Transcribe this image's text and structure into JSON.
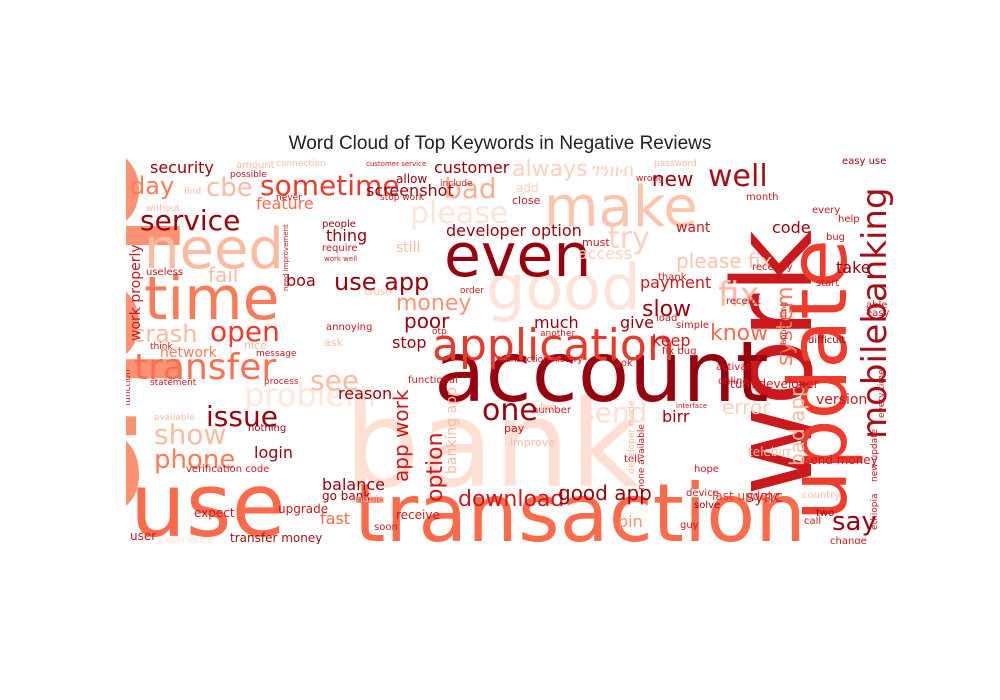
{
  "title": "Word Cloud of Top Keywords in Negative Reviews",
  "chart_data": {
    "type": "wordcloud",
    "title": "Word Cloud of Top Keywords in Negative Reviews",
    "colormap": "Reds",
    "background": "#ffffff",
    "words": [
      {
        "text": "app",
        "color": "#fc9272"
      },
      {
        "text": "bank",
        "color": "#fee0d2"
      },
      {
        "text": "work",
        "color": "#cb181d"
      },
      {
        "text": "update",
        "color": "#ef3b2c"
      },
      {
        "text": "account",
        "color": "#99000d"
      },
      {
        "text": "transaction",
        "color": "#fb6a4a"
      },
      {
        "text": "use",
        "color": "#fb6a4a"
      },
      {
        "text": "good",
        "color": "#fde3d8"
      },
      {
        "text": "time",
        "color": "#fb7b58"
      },
      {
        "text": "need",
        "color": "#fcbba1"
      },
      {
        "text": "make",
        "color": "#fcc4ad"
      },
      {
        "text": "even",
        "color": "#99000d"
      },
      {
        "text": "application",
        "color": "#e53a2c"
      },
      {
        "text": "transfer",
        "color": "#fb7050"
      },
      {
        "text": "mobilebanking",
        "color": "#a50f15"
      },
      {
        "text": "one",
        "color": "#99000d"
      },
      {
        "text": "sometime",
        "color": "#ef3b2c"
      },
      {
        "text": "please",
        "color": "#fde3d8"
      },
      {
        "text": "well",
        "color": "#a50f15"
      },
      {
        "text": "service",
        "color": "#99000d"
      },
      {
        "text": "try",
        "color": "#fdd0bf"
      },
      {
        "text": "bad",
        "color": "#fcae91"
      },
      {
        "text": "problem",
        "color": "#fee7dc"
      },
      {
        "text": "open",
        "color": "#ef3b2c"
      },
      {
        "text": "issue",
        "color": "#99000d"
      },
      {
        "text": "show",
        "color": "#fcbba1"
      },
      {
        "text": "phone",
        "color": "#fb7b58"
      },
      {
        "text": "say",
        "color": "#99000d"
      },
      {
        "text": "use app",
        "color": "#99000d"
      },
      {
        "text": "money",
        "color": "#fc9272"
      },
      {
        "text": "download",
        "color": "#cb181d"
      },
      {
        "text": "good app",
        "color": "#99000d"
      },
      {
        "text": "option",
        "color": "#cb181d"
      },
      {
        "text": "app work",
        "color": "#cb181d"
      },
      {
        "text": "fix",
        "color": "#fcbba1"
      },
      {
        "text": "slow",
        "color": "#99000d"
      },
      {
        "text": "please fix",
        "color": "#fcc4ad"
      },
      {
        "text": "crash",
        "color": "#fcbba1"
      },
      {
        "text": "see",
        "color": "#fcbba1"
      },
      {
        "text": "day",
        "color": "#fb7b58"
      },
      {
        "text": "cbe",
        "color": "#fcbba1"
      },
      {
        "text": "know",
        "color": "#fb6a4a"
      },
      {
        "text": "always",
        "color": "#fdd0bf"
      },
      {
        "text": "system",
        "color": "#fb7b58"
      },
      {
        "text": "new",
        "color": "#99000d"
      },
      {
        "text": "send",
        "color": "#fee0d2"
      },
      {
        "text": "error",
        "color": "#fdd0bf"
      },
      {
        "text": "poor",
        "color": "#99000d"
      },
      {
        "text": "developer option",
        "color": "#99000d"
      },
      {
        "text": "fail",
        "color": "#fcbba1"
      },
      {
        "text": "customer",
        "color": "#99000d"
      },
      {
        "text": "payment",
        "color": "#cb181d"
      },
      {
        "text": "screenshot",
        "color": "#99000d"
      },
      {
        "text": "security",
        "color": "#99000d"
      },
      {
        "text": "feature",
        "color": "#fb6a4a"
      },
      {
        "text": "access",
        "color": "#fdd0bf"
      },
      {
        "text": "balance",
        "color": "#99000d"
      },
      {
        "text": "login",
        "color": "#99000d"
      },
      {
        "text": "thing",
        "color": "#99000d"
      },
      {
        "text": "much",
        "color": "#99000d"
      },
      {
        "text": "give",
        "color": "#99000d"
      },
      {
        "text": "keep",
        "color": "#cb181d"
      },
      {
        "text": "code",
        "color": "#99000d"
      },
      {
        "text": "boa",
        "color": "#99000d"
      },
      {
        "text": "stop",
        "color": "#99000d"
      },
      {
        "text": "reason",
        "color": "#99000d"
      },
      {
        "text": "bad app",
        "color": "#fcbba1"
      },
      {
        "text": "sync",
        "color": "#cb181d"
      },
      {
        "text": "birr",
        "color": "#99000d"
      },
      {
        "text": "fast",
        "color": "#fb6a4a"
      },
      {
        "text": "pin",
        "color": "#fc9272"
      },
      {
        "text": "network",
        "color": "#fb7b58"
      },
      {
        "text": "work properly",
        "color": "#cb181d"
      },
      {
        "text": "take",
        "color": "#99000d"
      },
      {
        "text": "version",
        "color": "#cb181d"
      },
      {
        "text": "want",
        "color": "#cb181d"
      },
      {
        "text": "still",
        "color": "#fcbba1"
      },
      {
        "text": "banking app",
        "color": "#fcbba1"
      },
      {
        "text": "go bank",
        "color": "#99000d"
      },
      {
        "text": "transfer money",
        "color": "#a50f15"
      },
      {
        "text": "send money",
        "color": "#cb181d"
      },
      {
        "text": "turn developer",
        "color": "#cb181d"
      },
      {
        "text": "last update",
        "color": "#ef3b2c"
      },
      {
        "text": "verification code",
        "color": "#cb181d"
      },
      {
        "text": "upgrade",
        "color": "#cb181d"
      },
      {
        "text": "user",
        "color": "#cb181d"
      },
      {
        "text": "expect",
        "color": "#cb181d"
      },
      {
        "text": "receive",
        "color": "#cb181d"
      },
      {
        "text": "allow",
        "color": "#99000d"
      },
      {
        "text": "add",
        "color": "#fdd0bf"
      },
      {
        "text": "close",
        "color": "#cb181d"
      },
      {
        "text": "must",
        "color": "#cb181d"
      },
      {
        "text": "month",
        "color": "#cb181d"
      },
      {
        "text": "every",
        "color": "#cb181d"
      },
      {
        "text": "help",
        "color": "#cb181d"
      },
      {
        "text": "bug",
        "color": "#cb181d"
      },
      {
        "text": "start",
        "color": "#cb181d"
      },
      {
        "text": "able",
        "color": "#cb181d"
      },
      {
        "text": "easy",
        "color": "#cb181d"
      },
      {
        "text": "difficult",
        "color": "#99000d"
      },
      {
        "text": "recently",
        "color": "#cb181d"
      },
      {
        "text": "receipt",
        "color": "#cb181d"
      },
      {
        "text": "simple",
        "color": "#cb181d"
      },
      {
        "text": "load",
        "color": "#cb181d"
      },
      {
        "text": "fix bug",
        "color": "#cb181d"
      },
      {
        "text": "activate",
        "color": "#cb181d"
      },
      {
        "text": "online",
        "color": "#cb181d"
      },
      {
        "text": "two",
        "color": "#99000d"
      },
      {
        "text": "call",
        "color": "#cb181d"
      },
      {
        "text": "change",
        "color": "#cb181d"
      },
      {
        "text": "country",
        "color": "#fcbba1"
      },
      {
        "text": "solve",
        "color": "#99000d"
      },
      {
        "text": "device",
        "color": "#cb181d"
      },
      {
        "text": "hope",
        "color": "#cb181d"
      },
      {
        "text": "guy",
        "color": "#cb181d"
      },
      {
        "text": "telebirr",
        "color": "#fcbba1"
      },
      {
        "text": "tell",
        "color": "#cb181d"
      },
      {
        "text": "improve",
        "color": "#fcbba1"
      },
      {
        "text": "pay",
        "color": "#cb181d"
      },
      {
        "text": "number",
        "color": "#cb181d"
      },
      {
        "text": "big",
        "color": "#fcbba1"
      },
      {
        "text": "ask",
        "color": "#fcbba1"
      },
      {
        "text": "message",
        "color": "#cb181d"
      },
      {
        "text": "process",
        "color": "#cb181d"
      },
      {
        "text": "functional",
        "color": "#cb181d"
      },
      {
        "text": "transaction history",
        "color": "#cb181d"
      },
      {
        "text": "look",
        "color": "#cb181d"
      },
      {
        "text": "think",
        "color": "#cb181d"
      },
      {
        "text": "statement",
        "color": "#cb181d"
      },
      {
        "text": "function",
        "color": "#cb181d"
      },
      {
        "text": "available",
        "color": "#fcbba1"
      },
      {
        "text": "nothing",
        "color": "#99000d"
      },
      {
        "text": "unable",
        "color": "#fcbba1"
      },
      {
        "text": "soon",
        "color": "#cb181d"
      },
      {
        "text": "experience",
        "color": "#fee0d2"
      },
      {
        "text": "useless",
        "color": "#cb181d"
      },
      {
        "text": "annoying",
        "color": "#cb181d"
      },
      {
        "text": "people",
        "color": "#99000d"
      },
      {
        "text": "require",
        "color": "#cb181d"
      },
      {
        "text": "crush",
        "color": "#fcbba1"
      },
      {
        "text": "otp",
        "color": "#cb181d"
      },
      {
        "text": "nice",
        "color": "#fcbba1"
      },
      {
        "text": "order",
        "color": "#cb181d"
      },
      {
        "text": "another",
        "color": "#cb181d"
      },
      {
        "text": "wrong",
        "color": "#cb181d"
      },
      {
        "text": "password",
        "color": "#fcbba1"
      },
      {
        "text": "easy use",
        "color": "#99000d"
      },
      {
        "text": "amount",
        "color": "#fcbba1"
      },
      {
        "text": "connection",
        "color": "#fcbba1"
      },
      {
        "text": "customer service",
        "color": "#cb181d"
      },
      {
        "text": "possible",
        "color": "#cb181d"
      },
      {
        "text": "find",
        "color": "#fcbba1"
      },
      {
        "text": "without",
        "color": "#fcbba1"
      },
      {
        "text": "never",
        "color": "#cb181d"
      },
      {
        "text": "stop work",
        "color": "#cb181d"
      },
      {
        "text": "include",
        "color": "#cb181d"
      },
      {
        "text": "need improvement",
        "color": "#cb181d"
      },
      {
        "text": "work well",
        "color": "#cb181d"
      },
      {
        "text": "ethiopia",
        "color": "#cb181d"
      },
      {
        "text": "new update",
        "color": "#cb181d"
      },
      {
        "text": "every time",
        "color": "#cb181d"
      },
      {
        "text": "disappointing",
        "color": "#cb181d"
      },
      {
        "text": "interface",
        "color": "#cb181d"
      },
      {
        "text": "none available",
        "color": "#cb181d"
      },
      {
        "text": "developer mode",
        "color": "#fcbba1"
      },
      {
        "text": "thank",
        "color": "#cb181d"
      },
      {
        "text": "ገንዘብ",
        "color": "#fdd0bf"
      }
    ]
  }
}
